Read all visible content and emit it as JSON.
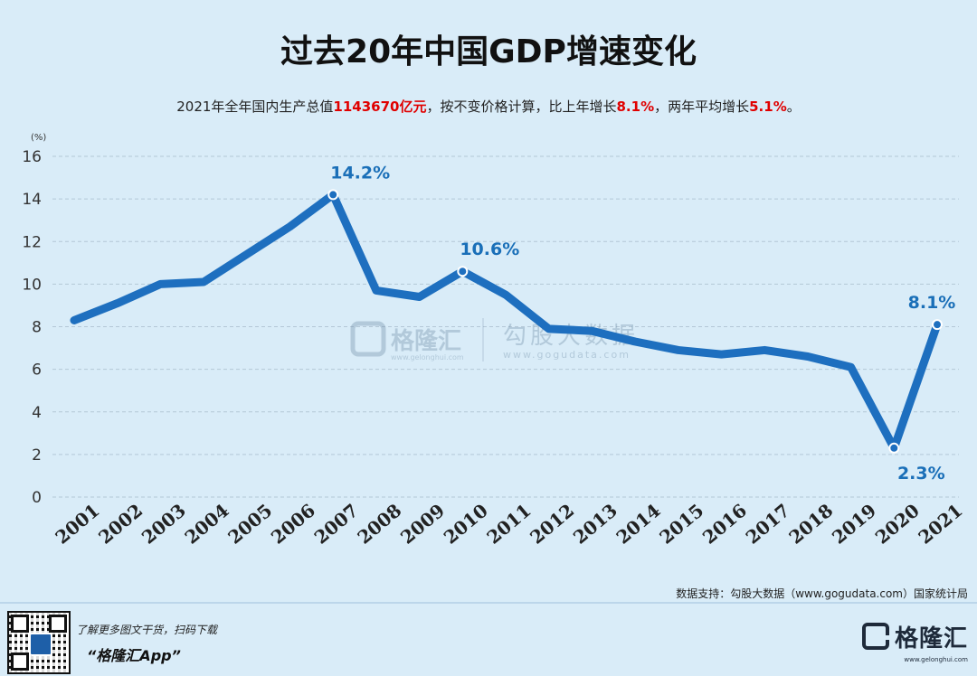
{
  "header": {
    "title": "过去20年中国GDP增速变化",
    "subtitle_parts": [
      {
        "text": "2021年全年国内生产总值",
        "hl": false
      },
      {
        "text": "1143670亿元",
        "hl": true
      },
      {
        "text": "，按不变价格计算，比上年增长",
        "hl": false
      },
      {
        "text": "8.1%",
        "hl": true
      },
      {
        "text": "，两年平均增长",
        "hl": false
      },
      {
        "text": "5.1%",
        "hl": true
      },
      {
        "text": "。",
        "hl": false
      }
    ]
  },
  "chart_data": {
    "type": "line",
    "title": "过去20年中国GDP增速变化",
    "ylabel": "(%)",
    "xlabel": "",
    "ylim": [
      0,
      16
    ],
    "yticks": [
      0,
      2,
      4,
      6,
      8,
      10,
      12,
      14,
      16
    ],
    "categories": [
      "2001",
      "2002",
      "2003",
      "2004",
      "2005",
      "2006",
      "2007",
      "2008",
      "2009",
      "2010",
      "2011",
      "2012",
      "2013",
      "2014",
      "2015",
      "2016",
      "2017",
      "2018",
      "2019",
      "2020",
      "2021"
    ],
    "values": [
      8.3,
      9.1,
      10.0,
      10.1,
      11.4,
      12.7,
      14.2,
      9.7,
      9.4,
      10.6,
      9.5,
      7.9,
      7.8,
      7.3,
      6.9,
      6.7,
      6.9,
      6.6,
      6.1,
      2.3,
      8.1
    ],
    "annotations": [
      {
        "index": 6,
        "label": "14.2%",
        "pos": "above"
      },
      {
        "index": 9,
        "label": "10.6%",
        "pos": "above"
      },
      {
        "index": 19,
        "label": "2.3%",
        "pos": "below"
      },
      {
        "index": 20,
        "label": "8.1%",
        "pos": "above"
      }
    ],
    "line_color": "#1e6fbf",
    "label_color": "#1a6fb8",
    "grid": true,
    "watermark": {
      "brand": "格隆汇",
      "brand_url": "www.gelonghui.com",
      "partner": "勾股大数据",
      "partner_url": "www.gogudata.com"
    }
  },
  "source": "数据支持：勾股大数据（www.gogudata.com）国家统计局",
  "footer": {
    "line1": "了解更多图文干货，扫码下载",
    "line2": "“格隆汇App”",
    "logo_text": "格隆汇",
    "logo_sub": "www.gelonghui.com"
  }
}
